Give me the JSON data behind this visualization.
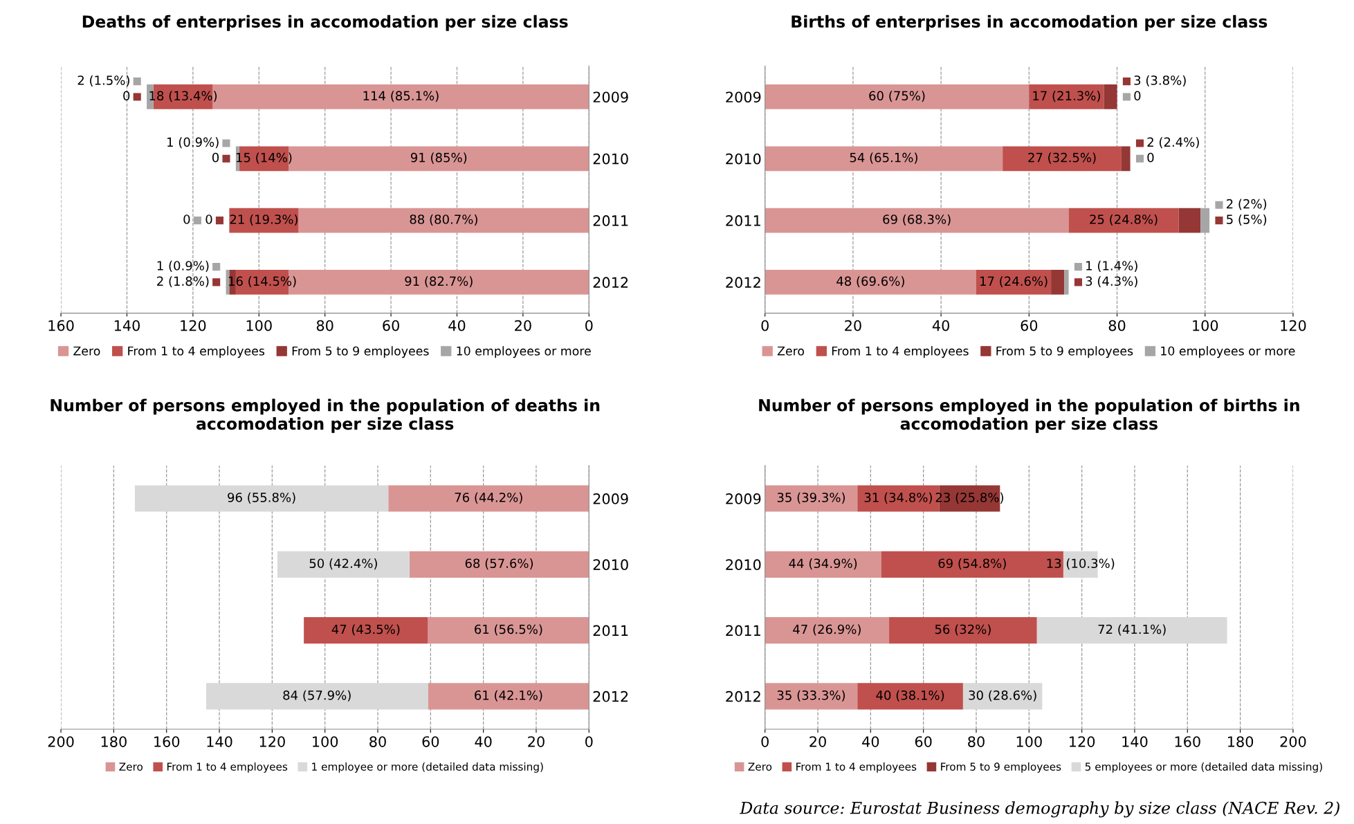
{
  "chart_data": [
    {
      "type": "bar",
      "orientation": "horizontal",
      "stacked": true,
      "title": "Deaths of enterprises in accomodation per size class",
      "categories": [
        "2009",
        "2010",
        "2011",
        "2012"
      ],
      "xlim": [
        160,
        0
      ],
      "xticks": [
        160,
        140,
        120,
        100,
        80,
        60,
        40,
        20,
        0
      ],
      "grid": "x",
      "legend": "bottom",
      "series": [
        {
          "name": "Zero",
          "color": "#d99594",
          "values": [
            114,
            91,
            88,
            91
          ],
          "value_labels": [
            "114 (85.1%)",
            "91 (85%)",
            "88 (80.7%)",
            "91 (82.7%)"
          ]
        },
        {
          "name": "From 1 to 4 employees",
          "color": "#c0504d",
          "values": [
            18,
            15,
            21,
            16
          ],
          "value_labels": [
            "18 (13.4%)",
            "15 (14%)",
            "21 (19.3%)",
            "16 (14.5%)"
          ]
        },
        {
          "name": "From 5 to 9 employees",
          "color": "#953735",
          "values": [
            0,
            0,
            0,
            2
          ],
          "value_labels": [
            "0",
            "0",
            "0",
            "2 (1.8%)"
          ]
        },
        {
          "name": "10 employees or more",
          "color": "#a6a6a6",
          "values": [
            2,
            1,
            0,
            1
          ],
          "value_labels": [
            "2 (1.5%)",
            "1 (0.9%)",
            "0",
            "1 (0.9%)"
          ]
        }
      ]
    },
    {
      "type": "bar",
      "orientation": "horizontal",
      "stacked": true,
      "title": "Births of enterprises in accomodation per size class",
      "categories": [
        "2009",
        "2010",
        "2011",
        "2012"
      ],
      "xlim": [
        0,
        120
      ],
      "xticks": [
        0,
        20,
        40,
        60,
        80,
        100,
        120
      ],
      "grid": "x",
      "legend": "bottom",
      "series": [
        {
          "name": "Zero",
          "color": "#d99594",
          "values": [
            60,
            54,
            69,
            48
          ],
          "value_labels": [
            "60 (75%)",
            "54 (65.1%)",
            "69 (68.3%)",
            "48 (69.6%)"
          ]
        },
        {
          "name": "From 1 to 4 employees",
          "color": "#c0504d",
          "values": [
            17,
            27,
            25,
            17
          ],
          "value_labels": [
            "17 (21.3%)",
            "27 (32.5%)",
            "25 (24.8%)",
            "17 (24.6%)"
          ]
        },
        {
          "name": "From 5 to 9 employees",
          "color": "#953735",
          "values": [
            3,
            2,
            5,
            3
          ],
          "value_labels": [
            "3 (3.8%)",
            "2 (2.4%)",
            "5 (5%)",
            "3 (4.3%)"
          ]
        },
        {
          "name": "10 employees or more",
          "color": "#a6a6a6",
          "values": [
            0,
            0,
            2,
            1
          ],
          "value_labels": [
            "0",
            "0",
            "2 (2%)",
            "1 (1.4%)"
          ]
        }
      ]
    },
    {
      "type": "bar",
      "orientation": "horizontal",
      "stacked": true,
      "title": "Number of persons employed in the population of deaths in accomodation per size class",
      "categories": [
        "2009",
        "2010",
        "2011",
        "2012"
      ],
      "xlim": [
        200,
        0
      ],
      "xticks": [
        200,
        180,
        160,
        140,
        120,
        100,
        80,
        60,
        40,
        20,
        0
      ],
      "grid": "x",
      "legend": "bottom",
      "series": [
        {
          "name": "Zero",
          "color": "#d99594",
          "values": [
            76,
            68,
            61,
            61
          ],
          "value_labels": [
            "76 (44.2%)",
            "68 (57.6%)",
            "61 (56.5%)",
            "61 (42.1%)"
          ]
        },
        {
          "name": "From 1 to 4 employees",
          "color": "#c0504d",
          "values": [
            null,
            null,
            47,
            null
          ],
          "value_labels": [
            null,
            null,
            "47 (43.5%)",
            null
          ]
        },
        {
          "name": "1 employee or more (detailed data missing)",
          "color": "#d9d9d9",
          "values": [
            96,
            50,
            null,
            84
          ],
          "value_labels": [
            "96 (55.8%)",
            "50 (42.4%)",
            null,
            "84 (57.9%)"
          ]
        }
      ]
    },
    {
      "type": "bar",
      "orientation": "horizontal",
      "stacked": true,
      "title": "Number of persons employed in the population of births in accomodation per size class",
      "categories": [
        "2009",
        "2010",
        "2011",
        "2012"
      ],
      "xlim": [
        0,
        200
      ],
      "xticks": [
        0,
        20,
        40,
        60,
        80,
        100,
        120,
        140,
        160,
        180,
        200
      ],
      "grid": "x",
      "legend": "bottom",
      "annotations": [
        "Data source: Eurostat Business demography by size class (NACE Rev. 2)"
      ],
      "series": [
        {
          "name": "Zero",
          "color": "#d99594",
          "values": [
            35,
            44,
            47,
            35
          ],
          "value_labels": [
            "35 (39.3%)",
            "44 (34.9%)",
            "47 (26.9%)",
            "35 (33.3%)"
          ]
        },
        {
          "name": "From 1 to 4 employees",
          "color": "#c0504d",
          "values": [
            31,
            69,
            56,
            40
          ],
          "value_labels": [
            "31 (34.8%)",
            "69 (54.8%)",
            "56 (32%)",
            "40 (38.1%)"
          ]
        },
        {
          "name": "From 5 to 9 employees",
          "color": "#953735",
          "values": [
            23,
            null,
            null,
            null
          ],
          "value_labels": [
            "23 (25.8%)",
            null,
            null,
            null
          ]
        },
        {
          "name": "5 employees or more (detailed data missing)",
          "color": "#d9d9d9",
          "values": [
            null,
            13,
            72,
            30
          ],
          "value_labels": [
            null,
            "13 (10.3%)",
            "72 (41.1%)",
            "30 (28.6%)"
          ]
        }
      ]
    }
  ]
}
